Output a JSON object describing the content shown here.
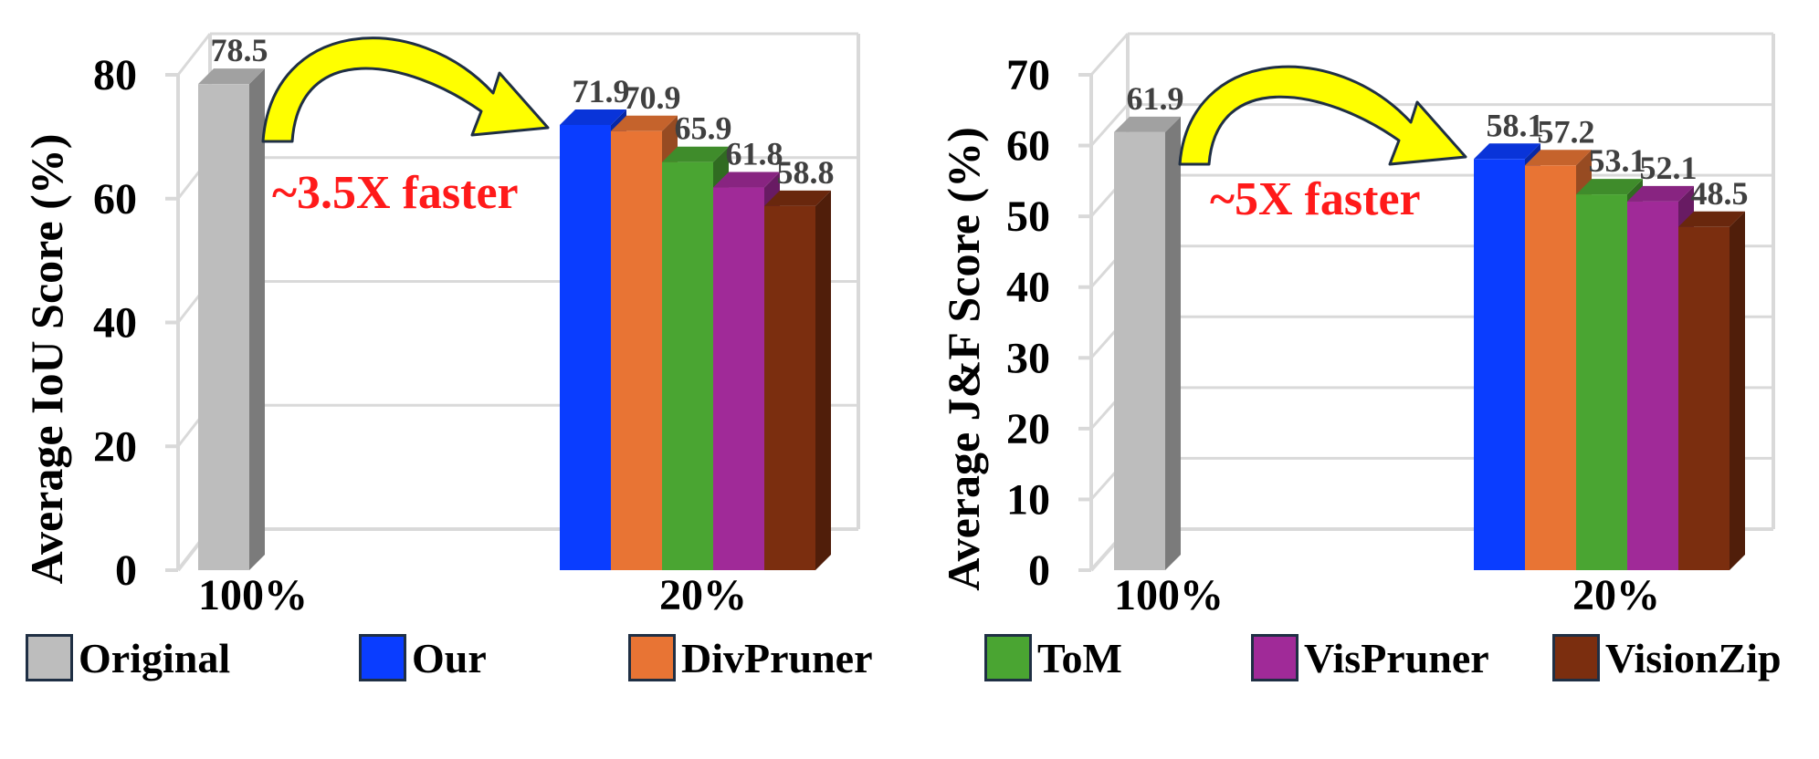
{
  "colors": {
    "Original": "#bdbdbd",
    "Our": "#0a3dff",
    "DivPruner": "#e87434",
    "ToM": "#4aa532",
    "VisPruner": "#a02a98",
    "VisionZip": "#7b2e0f",
    "annotation": "#ff1a1a",
    "arrow_fill": "#ffff00"
  },
  "legend": {
    "items": [
      {
        "label": "Original",
        "color_key": "Original"
      },
      {
        "label": "Our",
        "color_key": "Our"
      },
      {
        "label": "DivPruner",
        "color_key": "DivPruner"
      },
      {
        "label": "ToM",
        "color_key": "ToM"
      },
      {
        "label": "VisPruner",
        "color_key": "VisPruner"
      },
      {
        "label": "VisionZip",
        "color_key": "VisionZip"
      }
    ]
  },
  "chart_data": [
    {
      "type": "bar",
      "ylabel": "Average IoU Score  (%)",
      "ylim": [
        0,
        80
      ],
      "yticks": [
        0,
        20,
        40,
        60,
        80
      ],
      "annotation": "~3.5X faster",
      "groups": [
        {
          "label": "100%",
          "bars": [
            {
              "series": "Original",
              "value": 78.5
            }
          ]
        },
        {
          "label": "20%",
          "bars": [
            {
              "series": "Our",
              "value": 71.9
            },
            {
              "series": "DivPruner",
              "value": 70.9
            },
            {
              "series": "ToM",
              "value": 65.9
            },
            {
              "series": "VisPruner",
              "value": 61.8
            },
            {
              "series": "VisionZip",
              "value": 58.8
            }
          ]
        }
      ]
    },
    {
      "type": "bar",
      "ylabel": "Average J&F Score (%)",
      "ylim": [
        0,
        70
      ],
      "yticks": [
        0,
        10,
        20,
        30,
        40,
        50,
        60,
        70
      ],
      "annotation": "~5X faster",
      "groups": [
        {
          "label": "100%",
          "bars": [
            {
              "series": "Original",
              "value": 61.9
            }
          ]
        },
        {
          "label": "20%",
          "bars": [
            {
              "series": "Our",
              "value": 58.1
            },
            {
              "series": "DivPruner",
              "value": 57.2
            },
            {
              "series": "ToM",
              "value": 53.1
            },
            {
              "series": "VisPruner",
              "value": 52.1
            },
            {
              "series": "VisionZip",
              "value": 48.5
            }
          ]
        }
      ]
    }
  ]
}
